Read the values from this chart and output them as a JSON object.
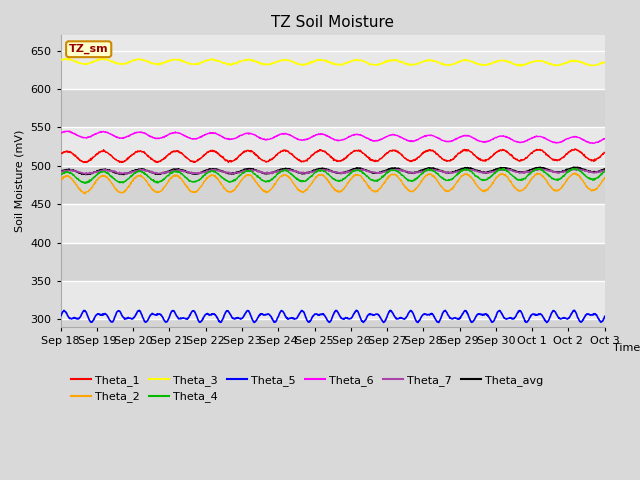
{
  "title": "TZ Soil Moisture",
  "xlabel": "Time",
  "ylabel": "Soil Moisture (mV)",
  "label_box": "TZ_sm",
  "ylim": [
    290,
    670
  ],
  "yticks": [
    300,
    350,
    400,
    450,
    500,
    550,
    600,
    650
  ],
  "x_labels": [
    "Sep 18",
    "Sep 19",
    "Sep 20",
    "Sep 21",
    "Sep 22",
    "Sep 23",
    "Sep 24",
    "Sep 25",
    "Sep 26",
    "Sep 27",
    "Sep 28",
    "Sep 29",
    "Sep 30",
    "Oct 1",
    "Oct 2",
    "Oct 3"
  ],
  "n_points": 1500,
  "series": {
    "Theta_1": {
      "color": "#ff0000"
    },
    "Theta_2": {
      "color": "#ffa500"
    },
    "Theta_3": {
      "color": "#ffff00"
    },
    "Theta_4": {
      "color": "#00bb00"
    },
    "Theta_5": {
      "color": "#0000ff"
    },
    "Theta_6": {
      "color": "#ff00ff"
    },
    "Theta_7": {
      "color": "#aa44aa"
    },
    "Theta_avg": {
      "color": "#000000"
    }
  },
  "background_color": "#d9d9d9",
  "plot_bg_light": "#e8e8e8",
  "plot_bg_dark": "#d4d4d4",
  "grid_color": "#ffffff",
  "title_fontsize": 11,
  "axis_fontsize": 8,
  "tick_fontsize": 8,
  "legend_fontsize": 8
}
